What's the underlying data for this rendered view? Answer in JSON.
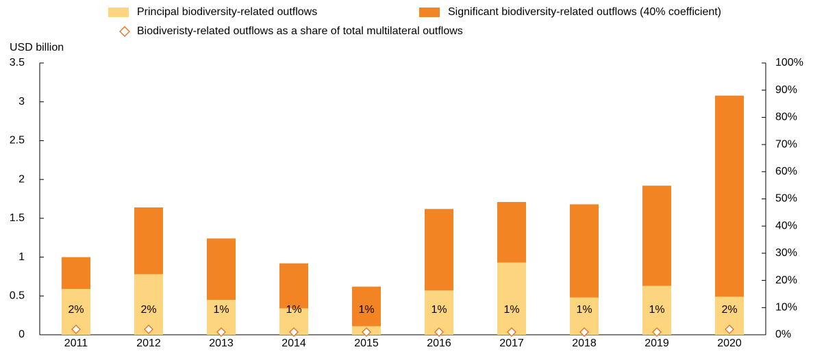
{
  "chart_data": {
    "type": "bar",
    "stacked": true,
    "y_label": "USD billion",
    "categories": [
      "2011",
      "2012",
      "2013",
      "2014",
      "2015",
      "2016",
      "2017",
      "2018",
      "2019",
      "2020"
    ],
    "series": [
      {
        "name": "Principal biodiversity-related outflows",
        "color": "#fed57f",
        "values": [
          0.59,
          0.78,
          0.45,
          0.34,
          0.11,
          0.57,
          0.93,
          0.48,
          0.63,
          0.49
        ]
      },
      {
        "name": "Significant biodiversity-related outflows (40% coefficient)",
        "color": "#f28424",
        "values": [
          0.41,
          0.86,
          0.79,
          0.58,
          0.51,
          1.05,
          0.78,
          1.2,
          1.29,
          2.59
        ]
      },
      {
        "name": "Biodiveristy-related outflows as a share of total multilateral outflows",
        "type": "scatter",
        "marker": "diamond",
        "color": "#e46c1c",
        "axis": "y2",
        "values": [
          2,
          2,
          1,
          1,
          1,
          1,
          1,
          1,
          1,
          2
        ],
        "value_labels": [
          "2%",
          "2%",
          "1%",
          "1%",
          "1%",
          "1%",
          "1%",
          "1%",
          "1%",
          "2%"
        ]
      }
    ],
    "ylim": [
      0,
      3.5
    ],
    "yticks": [
      0,
      0.5,
      1,
      1.5,
      2,
      2.5,
      3,
      3.5
    ],
    "y2lim": [
      0,
      100
    ],
    "y2ticks": [
      {
        "value": 0,
        "label": "0%"
      },
      {
        "value": 10,
        "label": "10%"
      },
      {
        "value": 20,
        "label": "20%"
      },
      {
        "value": 30,
        "label": "30%"
      },
      {
        "value": 40,
        "label": "40%"
      },
      {
        "value": 50,
        "label": "50%"
      },
      {
        "value": 60,
        "label": "60%"
      },
      {
        "value": 70,
        "label": "70%"
      },
      {
        "value": 80,
        "label": "80%"
      },
      {
        "value": 90,
        "label": "90%"
      },
      {
        "value": 100,
        "label": "100%"
      }
    ],
    "grid": false
  }
}
